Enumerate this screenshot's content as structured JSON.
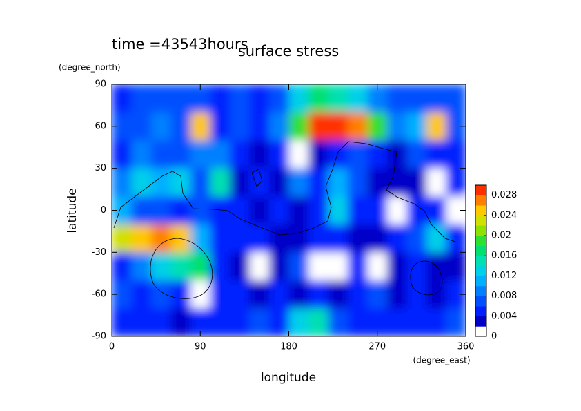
{
  "chart_data": {
    "type": "contour",
    "title": "surface stress",
    "subtitle": "time =43543hours",
    "x_label": "longitude",
    "y_label": "latitude",
    "x_unit": "(degree_east)",
    "y_unit": "(degree_north)",
    "xlim": [
      0,
      360
    ],
    "ylim": [
      -90,
      90
    ],
    "xticks": [
      0,
      90,
      180,
      270,
      360
    ],
    "yticks": [
      -90,
      -60,
      -30,
      0,
      30,
      60,
      90
    ],
    "z": [
      [
        0.005,
        0.006,
        0.006,
        0.007,
        0.006,
        0.005,
        0.006,
        0.005,
        0.006,
        0.012,
        0.016,
        0.014,
        0.012,
        0.008,
        0.006,
        0.006,
        0.007,
        0.006
      ],
      [
        0.006,
        0.007,
        0.009,
        0.006,
        0.024,
        0.005,
        0.006,
        0.004,
        0.008,
        0.018,
        0.028,
        0.028,
        0.026,
        0.018,
        0.008,
        0.01,
        0.024,
        0.006
      ],
      [
        0.004,
        0.008,
        0.006,
        0.006,
        0.009,
        0.008,
        0.004,
        0.002,
        0.004,
        0.001,
        0.003,
        0.005,
        0.006,
        0.004,
        0.003,
        0.006,
        0.005,
        0.004
      ],
      [
        0.008,
        0.012,
        0.01,
        0.012,
        0.006,
        0.014,
        0.003,
        0.005,
        0.003,
        0.008,
        0.004,
        0.01,
        0.006,
        0.002,
        0.003,
        0.002,
        0.001,
        0.004
      ],
      [
        0.01,
        0.006,
        0.007,
        0.004,
        0.006,
        0.004,
        0.005,
        0.002,
        0.005,
        0.003,
        0.005,
        0.012,
        0.004,
        0.004,
        0.001,
        0.004,
        0.004,
        0.001
      ],
      [
        0.022,
        0.024,
        0.026,
        0.024,
        0.01,
        0.004,
        0.004,
        0.004,
        0.003,
        0.002,
        0.004,
        0.004,
        0.003,
        0.003,
        0.005,
        0.006,
        0.012,
        0.004
      ],
      [
        0.004,
        0.008,
        0.012,
        0.014,
        0.016,
        0.004,
        0.003,
        0.001,
        0.003,
        0.006,
        0.001,
        0.001,
        0.004,
        0.001,
        0.002,
        0.004,
        0.003,
        0.003
      ],
      [
        0.006,
        0.004,
        0.006,
        0.005,
        0.001,
        0.004,
        0.004,
        0.003,
        0.004,
        0.002,
        0.004,
        0.003,
        0.004,
        0.006,
        0.003,
        0.004,
        0.002,
        0.004
      ],
      [
        0.005,
        0.004,
        0.004,
        0.003,
        0.004,
        0.005,
        0.004,
        0.006,
        0.004,
        0.012,
        0.014,
        0.006,
        0.004,
        0.005,
        0.004,
        0.005,
        0.004,
        0.006
      ]
    ],
    "colorbar": {
      "zlim": [
        0,
        0.03
      ],
      "ticks": [
        0,
        0.004,
        0.008,
        0.012,
        0.016,
        0.02,
        0.024,
        0.028
      ],
      "colors": [
        "#ffffff",
        "#0000c8",
        "#0020ff",
        "#0050ff",
        "#0080ff",
        "#00b0ff",
        "#00d0e8",
        "#00e0b0",
        "#00e070",
        "#30e030",
        "#90e000",
        "#d0e000",
        "#ffc800",
        "#ff8000",
        "#ff3000"
      ]
    }
  }
}
